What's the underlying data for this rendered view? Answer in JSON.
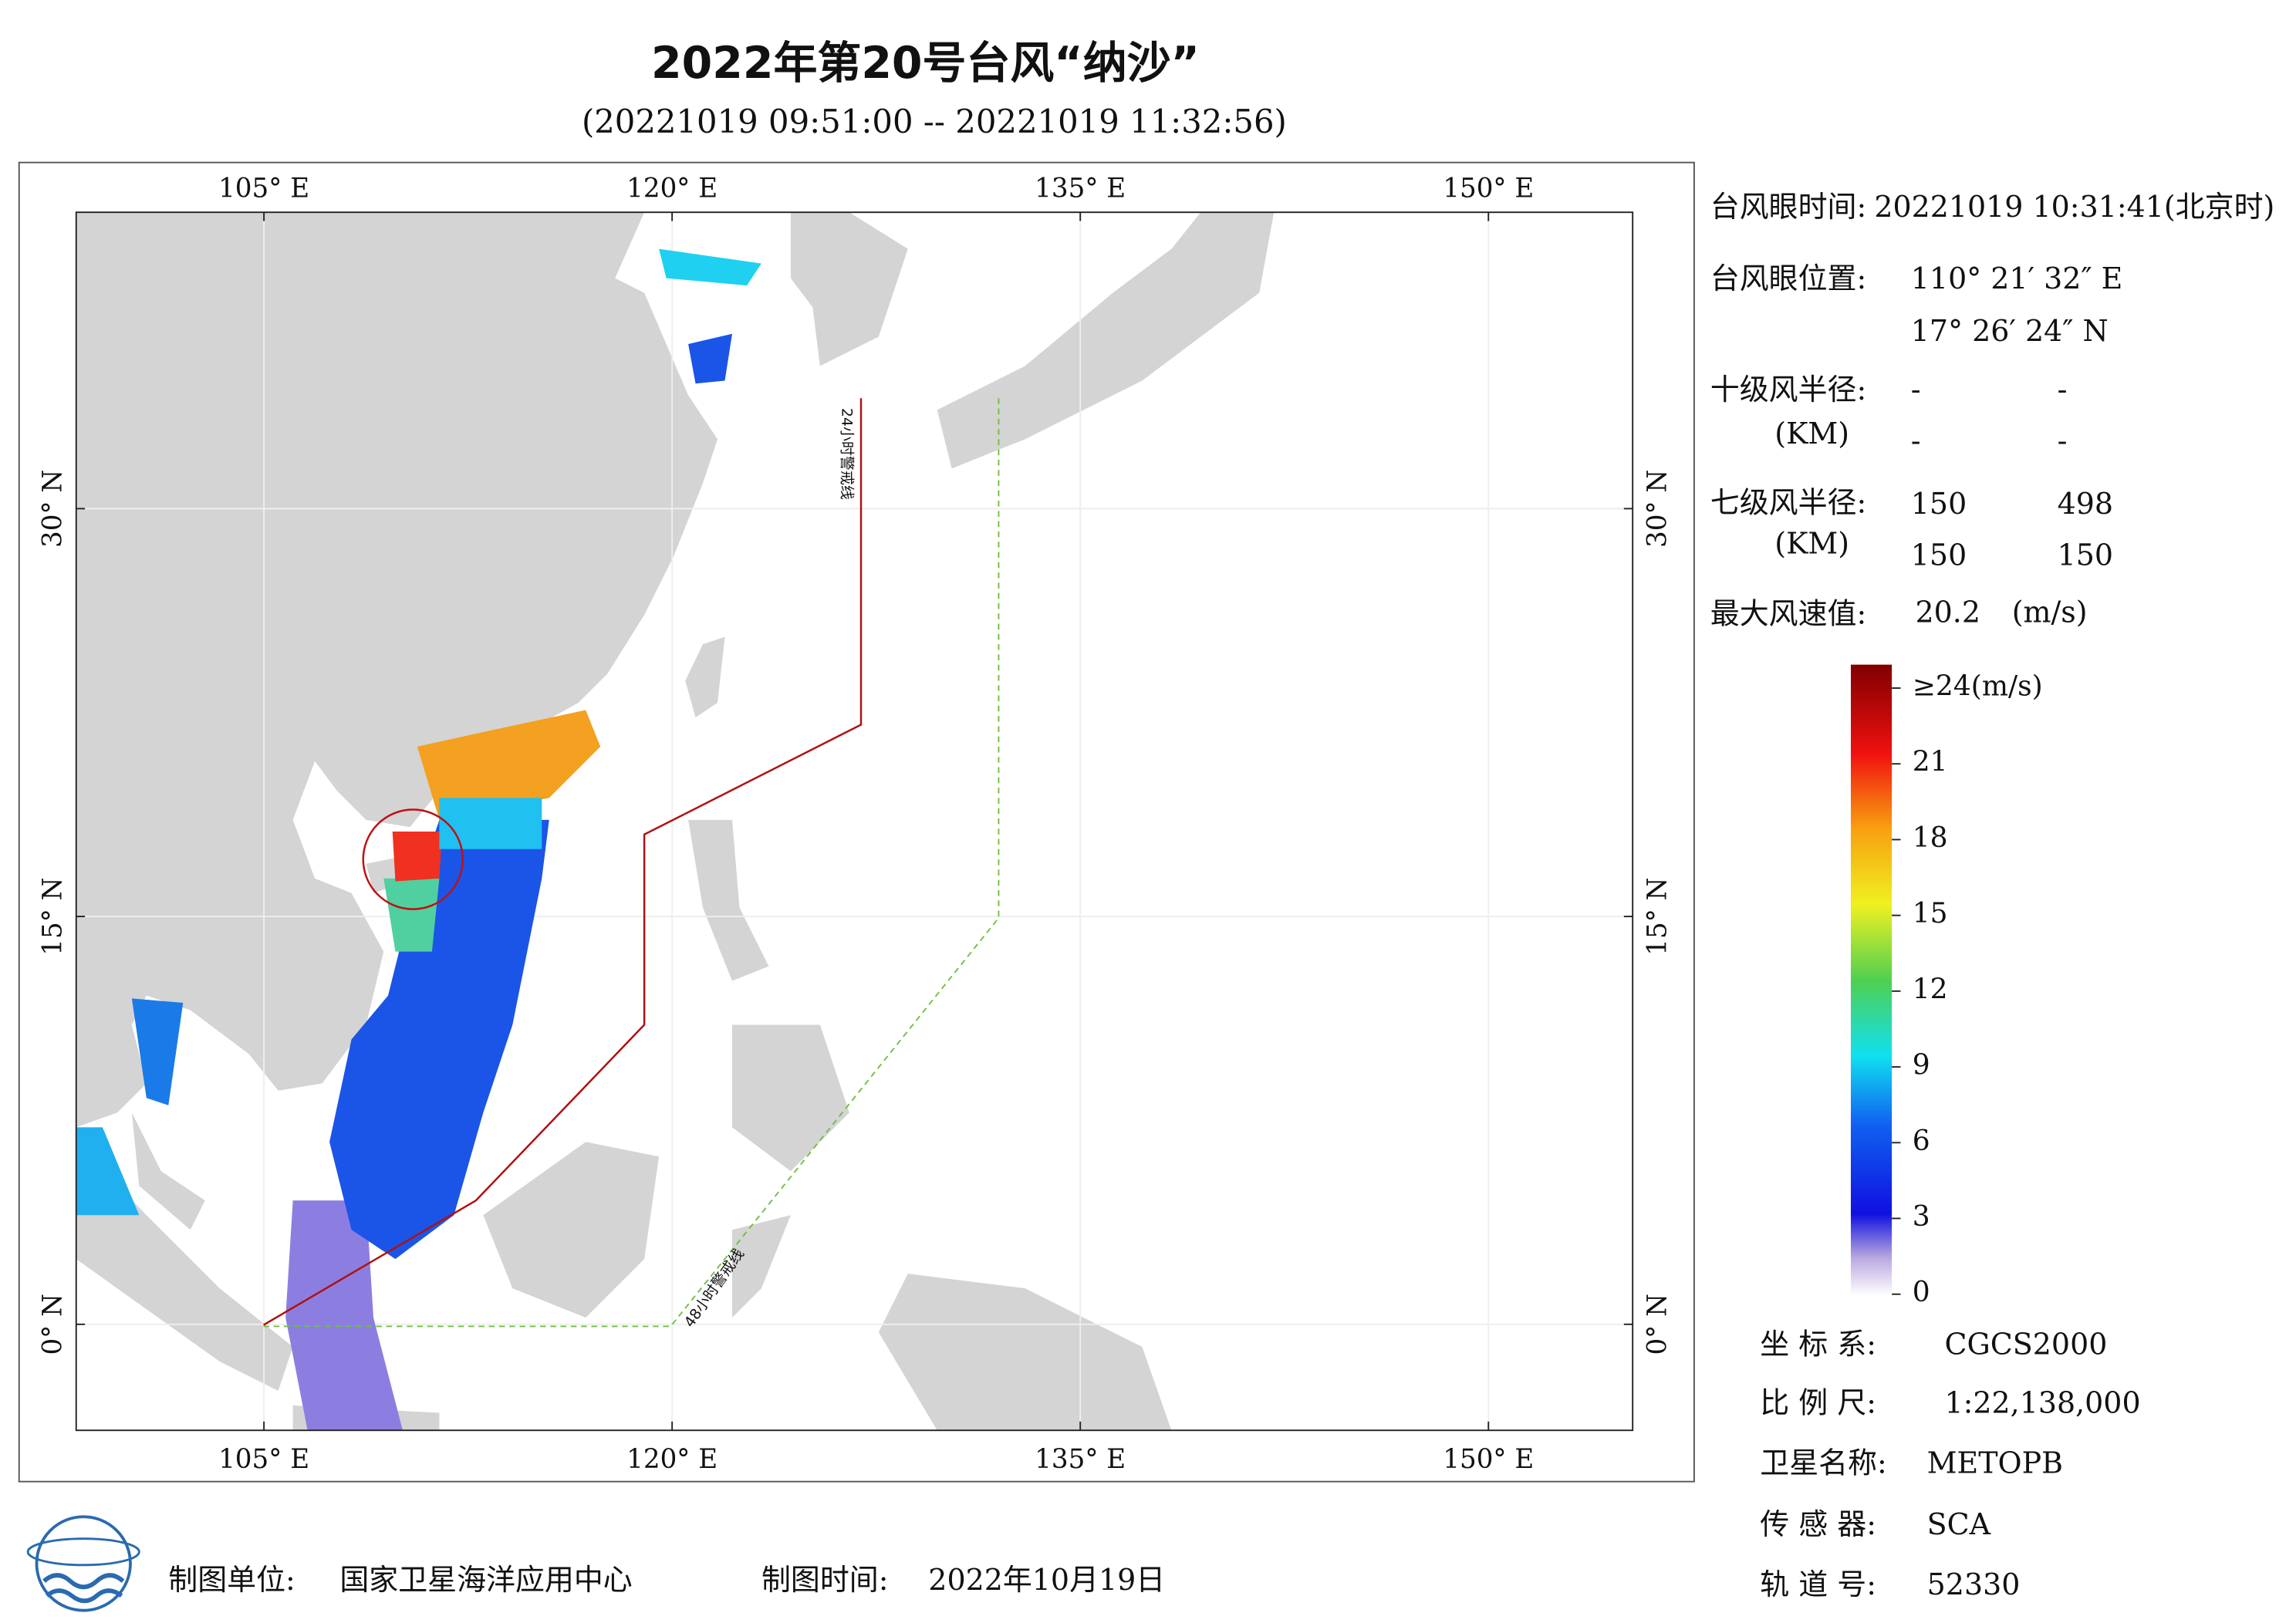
{
  "header": {
    "title": "2022年第20号台风“纳沙”",
    "subtitle": "(20221019 09:51:00 -- 20221019 11:32:56)"
  },
  "map": {
    "xlim": [
      98.1,
      155.3
    ],
    "ylim": [
      -3.9,
      40.9
    ],
    "xticks": [
      {
        "value": 105,
        "label": "105° E"
      },
      {
        "value": 120,
        "label": "120° E"
      },
      {
        "value": 135,
        "label": "135° E"
      },
      {
        "value": 150,
        "label": "150° E"
      }
    ],
    "yticks": [
      {
        "value": 0,
        "label": "0° N"
      },
      {
        "value": 15,
        "label": "15° N"
      },
      {
        "value": 30,
        "label": "30° N"
      }
    ],
    "warning_24h": "24小时警戒线",
    "warning_48h": "48小时警戒线"
  },
  "info": {
    "eye_time": {
      "label": "台风眼时间:",
      "value": "20221019 10:31:41(北京时)"
    },
    "eye_position": {
      "label": "台风眼位置:",
      "lon": "110° 21′ 32″ E",
      "lat": "17° 26′ 24″ N"
    },
    "r10": {
      "label": "十级风半径:",
      "unit": "(KM)",
      "values": [
        "-",
        "-",
        "-",
        "-"
      ]
    },
    "r7": {
      "label": "七级风半径:",
      "unit": "(KM)",
      "values": [
        "150",
        "498",
        "150",
        "150"
      ]
    },
    "max_wind": {
      "label": "最大风速值:",
      "value": "20.2",
      "unit": "(m/s)"
    }
  },
  "colorbar": {
    "clim": [
      0,
      24
    ],
    "ticks": [
      0,
      3,
      6,
      9,
      12,
      15,
      18,
      21,
      {
        "value": 24,
        "label": "≥24(m/s)"
      }
    ]
  },
  "meta": {
    "crs": {
      "label": "坐 标 系:",
      "value": "CGCS2000"
    },
    "scale": {
      "label": "比 例 尺:",
      "value": "1:22,138,000"
    },
    "satellite": {
      "label": "卫星名称:",
      "value": "METOPB"
    },
    "sensor": {
      "label": "传 感 器:",
      "value": "SCA"
    },
    "orbit": {
      "label": "轨 道 号:",
      "value": "52330"
    }
  },
  "footer": {
    "unit_label": "制图单位:",
    "unit": "国家卫星海洋应用中心",
    "date_label": "制图时间:",
    "date": "2022年10月19日"
  }
}
